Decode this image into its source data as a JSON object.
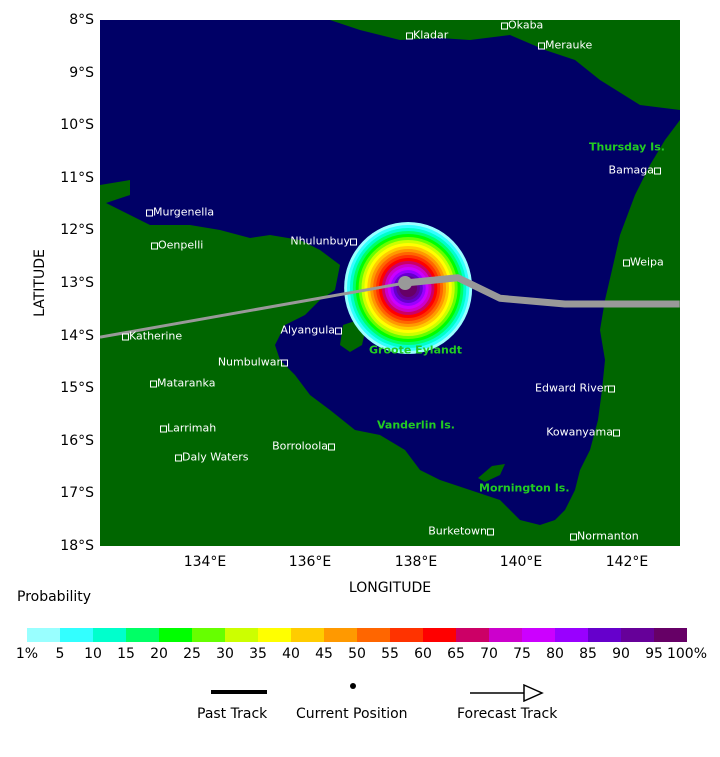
{
  "map": {
    "lat_ticks": [
      "8°S",
      "9°S",
      "10°S",
      "11°S",
      "12°S",
      "13°S",
      "14°S",
      "15°S",
      "16°S",
      "17°S",
      "18°S"
    ],
    "lon_ticks": [
      "134°E",
      "136°E",
      "138°E",
      "140°E",
      "142°E"
    ],
    "xlabel": "LONGITUDE",
    "ylabel": "LATITUDE",
    "colors": {
      "ocean": "#000066",
      "land": "#006600",
      "track": "#999999",
      "island_labels": "#22cc22"
    },
    "past_track": [
      [
        132.0,
        -14.03
      ],
      [
        137.79,
        -13.0
      ]
    ],
    "current_position": [
      137.79,
      -13.0
    ],
    "forecast_track": [
      [
        137.79,
        -13.0
      ],
      [
        138.79,
        -12.9
      ],
      [
        139.59,
        -13.29
      ],
      [
        140.82,
        -13.4
      ],
      [
        143.0,
        -13.4
      ]
    ],
    "places": [
      "Kladar",
      "Okaba",
      "Merauke",
      "Bamaga",
      "Weipa",
      "Murgenella",
      "Oenpelli",
      "Nhulunbuy",
      "Katherine",
      "Alyangula",
      "Numbulwar",
      "Mataranka",
      "Edward River",
      "Larrimah",
      "Kowanyama",
      "Borroloola",
      "Daly Waters",
      "Burketown",
      "Normanton"
    ],
    "islands": [
      "Thursday Is.",
      "Groote Eylandt",
      "Vanderlin Is.",
      "Mornington Is."
    ]
  },
  "legend": {
    "title": "Probability",
    "colors": [
      "#99ffff",
      "#33ffff",
      "#00ffcc",
      "#00ff66",
      "#00ff00",
      "#66ff00",
      "#ccff00",
      "#ffff00",
      "#ffcc00",
      "#ff9900",
      "#ff6600",
      "#ff3300",
      "#ff0000",
      "#cc0066",
      "#cc00cc",
      "#cc00ff",
      "#9900ff",
      "#6600cc",
      "#660099",
      "#660066"
    ],
    "tick_labels": [
      "1%",
      "5",
      "10",
      "15",
      "20",
      "25",
      "30",
      "35",
      "40",
      "45",
      "50",
      "55",
      "60",
      "65",
      "70",
      "75",
      "80",
      "85",
      "90",
      "95",
      "100%"
    ],
    "past_track": "Past Track",
    "current_position": "Current Position",
    "forecast_track": "Forecast Track"
  }
}
